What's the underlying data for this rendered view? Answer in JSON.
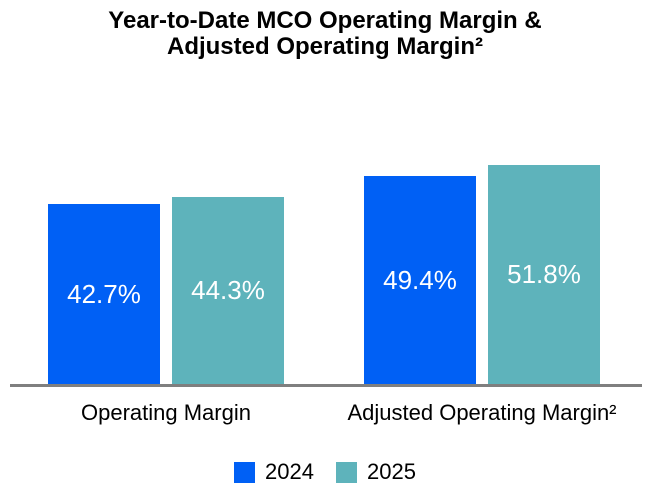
{
  "title": {
    "line1": "Year-to-Date MCO Operating Margin &",
    "line2": "Adjusted Operating Margin²"
  },
  "colors": {
    "series_2024": "#0060F5",
    "series_2025": "#5EB3BB",
    "axis_line": "#7F7F7F",
    "value_label_text": "#FFFFFF",
    "background": "#FFFFFF",
    "text": "#000000"
  },
  "chart_data": {
    "type": "bar",
    "title": "Year-to-Date MCO Operating Margin & Adjusted Operating Margin²",
    "categories": [
      "Operating Margin",
      "Adjusted Operating Margin²"
    ],
    "series": [
      {
        "name": "2024",
        "color": "#0060F5",
        "values": [
          42.7,
          49.4
        ]
      },
      {
        "name": "2025",
        "color": "#5EB3BB",
        "values": [
          44.3,
          51.8
        ]
      }
    ],
    "value_labels": [
      [
        "42.7%",
        "49.4%"
      ],
      [
        "44.3%",
        "51.8%"
      ]
    ],
    "ylabel": "",
    "xlabel": "",
    "ylim": [
      0,
      55
    ],
    "grid": false,
    "axis_ticks_visible": false,
    "legend_position": "bottom",
    "legend": [
      "2024",
      "2025"
    ]
  }
}
